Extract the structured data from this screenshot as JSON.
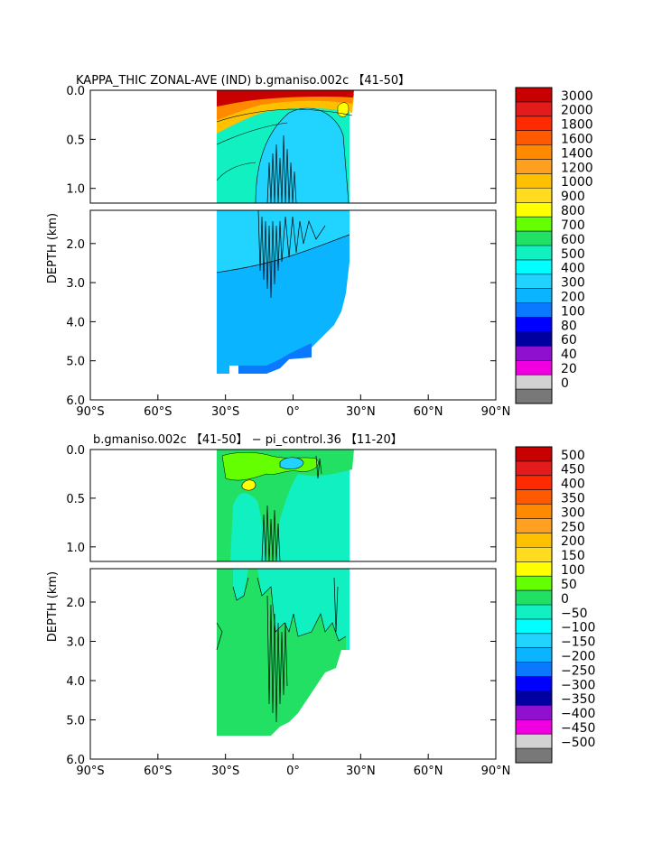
{
  "chart_data": [
    {
      "type": "heatmap",
      "title": "KAPPA_THIC ZONAL-AVE (IND) b.gmaniso.002c 【41-50】",
      "ylabel": "DEPTH (km)",
      "x_ticks": [
        "90°S",
        "60°S",
        "30°S",
        "0°",
        "30°N",
        "60°N",
        "90°N"
      ],
      "xlim": [
        -90,
        90
      ],
      "y_ticks_upper": [
        "0.0",
        "0.5",
        "1.0"
      ],
      "y_ticks_lower": [
        "2.0",
        "3.0",
        "4.0",
        "5.0",
        "6.0"
      ],
      "colorbar_levels": [
        "3000",
        "2000",
        "1800",
        "1600",
        "1400",
        "1200",
        "1000",
        "900",
        "800",
        "700",
        "600",
        "500",
        "400",
        "300",
        "200",
        "100",
        "80",
        "60",
        "40",
        "20",
        "0"
      ],
      "colorbar_colors": [
        "#c80000",
        "#e41b1b",
        "#ff2a00",
        "#ff5a00",
        "#ff8a00",
        "#ffa020",
        "#ffc000",
        "#ffdc20",
        "#ffff00",
        "#64ff00",
        "#22e064",
        "#10f0c0",
        "#00ffff",
        "#20d4ff",
        "#0ab4ff",
        "#0a78ff",
        "#0000ff",
        "#0000a0",
        "#9010d0",
        "#f000e0",
        "#d2d2d2",
        "#787878"
      ]
    },
    {
      "type": "heatmap",
      "title": "b.gmaniso.002c 【41-50】 − pi_control.36 【11-20】",
      "ylabel": "DEPTH (km)",
      "x_ticks": [
        "90°S",
        "60°S",
        "30°S",
        "0°",
        "30°N",
        "60°N",
        "90°N"
      ],
      "xlim": [
        -90,
        90
      ],
      "y_ticks_upper": [
        "0.0",
        "0.5",
        "1.0"
      ],
      "y_ticks_lower": [
        "2.0",
        "3.0",
        "4.0",
        "5.0",
        "6.0"
      ],
      "colorbar_levels": [
        "500",
        "450",
        "400",
        "350",
        "300",
        "250",
        "200",
        "150",
        "100",
        "50",
        "0",
        "−50",
        "−100",
        "−150",
        "−200",
        "−250",
        "−300",
        "−350",
        "−400",
        "−450",
        "−500"
      ],
      "colorbar_colors": [
        "#c80000",
        "#e41b1b",
        "#ff2a00",
        "#ff5a00",
        "#ff8a00",
        "#ffa020",
        "#ffc000",
        "#ffdc20",
        "#ffff00",
        "#64ff00",
        "#22e064",
        "#10f0c0",
        "#00ffff",
        "#20d4ff",
        "#0ab4ff",
        "#0a78ff",
        "#0000ff",
        "#0000a0",
        "#9010d0",
        "#f000e0",
        "#d2d2d2",
        "#787878"
      ]
    }
  ]
}
